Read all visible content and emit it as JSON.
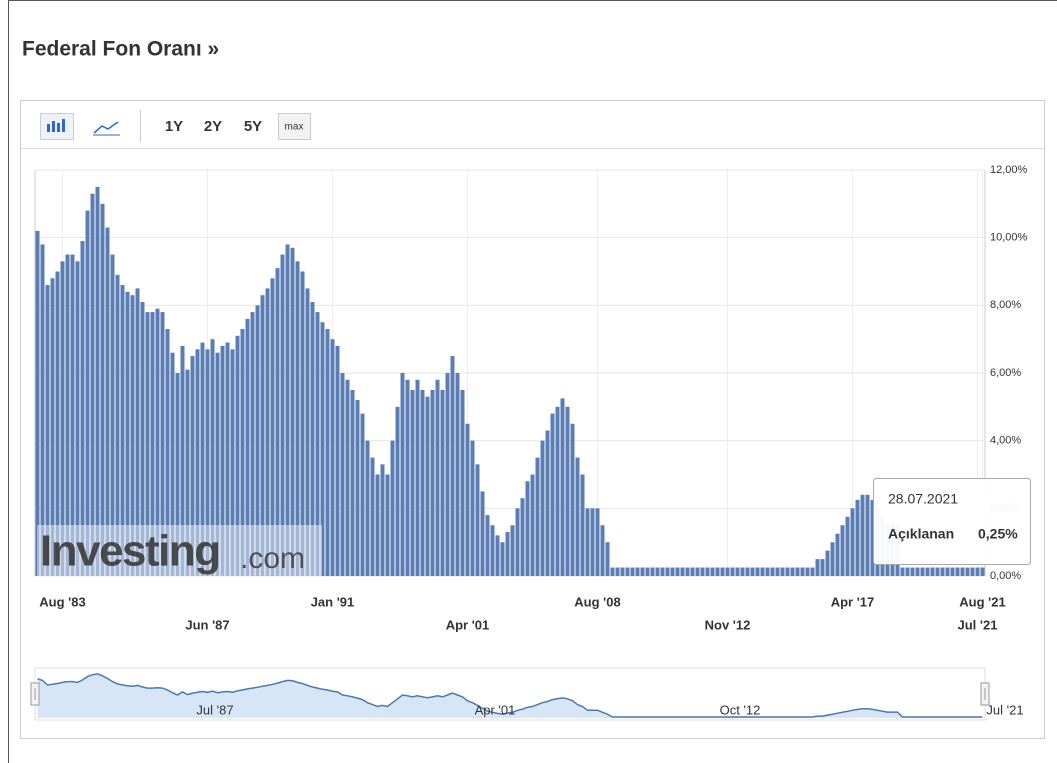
{
  "header": {
    "title": "Federal Fon Oranı »"
  },
  "toolbar": {
    "ranges": [
      "1Y",
      "2Y",
      "5Y",
      "max"
    ]
  },
  "watermark": {
    "brand": "Investing",
    "suffix": ".com"
  },
  "tooltip": {
    "date": "28.07.2021",
    "label": "Açıklanan",
    "value": "0,25%"
  },
  "navigator": {
    "labels": [
      "Jul '87",
      "Apr '01",
      "Oct '12",
      "Jul '21"
    ]
  },
  "chart_data": {
    "type": "bar",
    "color": "#5b7db4",
    "grid": true,
    "categories": [
      null,
      null,
      null,
      null,
      null,
      "Aug '83",
      null,
      null,
      null,
      null,
      null,
      null,
      null,
      null,
      null,
      null,
      null,
      null,
      null,
      null,
      null,
      null,
      null,
      null,
      null,
      null,
      null,
      null,
      null,
      null,
      null,
      null,
      null,
      null,
      "Jun '87",
      null,
      null,
      null,
      null,
      null,
      null,
      null,
      null,
      null,
      null,
      null,
      null,
      null,
      null,
      null,
      null,
      null,
      null,
      null,
      null,
      null,
      null,
      null,
      null,
      "Jan '91",
      null,
      null,
      null,
      null,
      null,
      null,
      null,
      null,
      null,
      null,
      null,
      null,
      null,
      null,
      null,
      null,
      null,
      null,
      null,
      null,
      null,
      null,
      null,
      null,
      null,
      null,
      "Apr '01",
      null,
      null,
      null,
      null,
      null,
      null,
      null,
      null,
      null,
      null,
      null,
      null,
      null,
      null,
      null,
      null,
      null,
      null,
      null,
      null,
      null,
      null,
      null,
      null,
      null,
      "Aug '08",
      null,
      null,
      null,
      null,
      null,
      null,
      null,
      null,
      null,
      null,
      null,
      null,
      null,
      null,
      null,
      null,
      null,
      null,
      null,
      null,
      null,
      null,
      null,
      null,
      null,
      "Nov '12",
      null,
      null,
      null,
      null,
      null,
      null,
      null,
      null,
      null,
      null,
      null,
      null,
      null,
      null,
      null,
      null,
      null,
      null,
      null,
      null,
      null,
      null,
      null,
      null,
      "Apr '17",
      null,
      null,
      null,
      null,
      null,
      null,
      null,
      null,
      null,
      null,
      null,
      null,
      null,
      null,
      null,
      null,
      null,
      null,
      null,
      null,
      null,
      null,
      null,
      null,
      "Jul '21",
      "Aug '21"
    ],
    "values": [
      10.2,
      9.8,
      8.6,
      8.8,
      9.0,
      9.3,
      9.5,
      9.5,
      9.3,
      9.9,
      10.8,
      11.3,
      11.5,
      11.0,
      10.3,
      9.5,
      8.9,
      8.6,
      8.4,
      8.3,
      8.5,
      8.1,
      7.8,
      7.8,
      7.9,
      7.8,
      7.3,
      6.6,
      6.0,
      6.8,
      6.1,
      6.5,
      6.7,
      6.9,
      6.7,
      7.0,
      6.6,
      6.8,
      6.9,
      6.7,
      7.1,
      7.3,
      7.6,
      7.8,
      8.0,
      8.3,
      8.5,
      8.8,
      9.1,
      9.5,
      9.8,
      9.7,
      9.3,
      9.0,
      8.5,
      8.1,
      7.8,
      7.5,
      7.3,
      7.0,
      6.8,
      6.0,
      5.8,
      5.5,
      5.2,
      4.8,
      4.0,
      3.5,
      3.0,
      3.3,
      3.0,
      4.0,
      5.0,
      6.0,
      5.8,
      5.5,
      5.8,
      5.5,
      5.3,
      5.5,
      5.8,
      5.5,
      6.0,
      6.5,
      6.0,
      5.5,
      4.5,
      4.0,
      3.3,
      2.5,
      1.8,
      1.5,
      1.2,
      1.0,
      1.3,
      1.5,
      2.0,
      2.3,
      2.8,
      3.0,
      3.5,
      4.0,
      4.3,
      4.8,
      5.0,
      5.25,
      5.0,
      4.5,
      3.5,
      3.0,
      2.0,
      2.0,
      2.0,
      1.5,
      1.0,
      0.25,
      0.25,
      0.25,
      0.25,
      0.25,
      0.25,
      0.25,
      0.25,
      0.25,
      0.25,
      0.25,
      0.25,
      0.25,
      0.25,
      0.25,
      0.25,
      0.25,
      0.25,
      0.25,
      0.25,
      0.25,
      0.25,
      0.25,
      0.25,
      0.25,
      0.25,
      0.25,
      0.25,
      0.25,
      0.25,
      0.25,
      0.25,
      0.25,
      0.25,
      0.25,
      0.25,
      0.25,
      0.25,
      0.25,
      0.25,
      0.25,
      0.5,
      0.5,
      0.75,
      1.0,
      1.25,
      1.5,
      1.75,
      2.0,
      2.25,
      2.4,
      2.4,
      2.25,
      2.0,
      1.75,
      1.55,
      1.55,
      1.55,
      0.25,
      0.25,
      0.25,
      0.25,
      0.25,
      0.25,
      0.25,
      0.25,
      0.25,
      0.25,
      0.25,
      0.25,
      0.25,
      0.25,
      0.25,
      0.25,
      0.25
    ],
    "ylim": [
      0,
      12
    ],
    "yticks": [
      {
        "value": 0,
        "label": "0,00%"
      },
      {
        "value": 2,
        "label": "2,00%"
      },
      {
        "value": 4,
        "label": "4,00%"
      },
      {
        "value": 6,
        "label": "6,00%"
      },
      {
        "value": 8,
        "label": "8,00%"
      },
      {
        "value": 10,
        "label": "10,00%"
      },
      {
        "value": 12,
        "label": "12,00%"
      }
    ]
  }
}
